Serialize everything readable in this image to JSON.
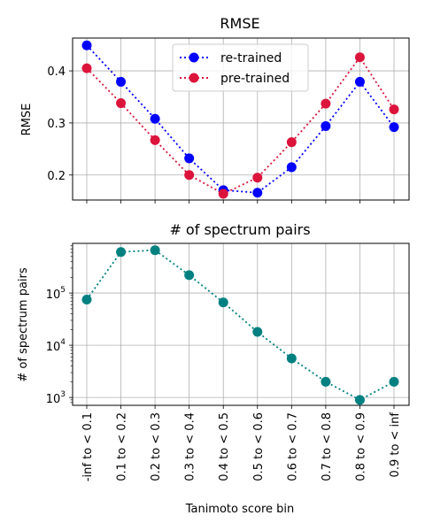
{
  "chart_data": [
    {
      "type": "line",
      "title": "RMSE",
      "ylabel": "RMSE",
      "xlabel": "",
      "ylim": [
        0.152,
        0.463
      ],
      "yticks": [
        0.2,
        0.3,
        0.4
      ],
      "ytick_labels": [
        "0.2",
        "0.3",
        "0.4"
      ],
      "grid": true,
      "legend_position": "upper-center",
      "series": [
        {
          "name": "re-trained",
          "color": "#0000ff",
          "values": [
            0.449,
            0.379,
            0.308,
            0.232,
            0.171,
            0.166,
            0.215,
            0.294,
            0.379,
            0.292
          ]
        },
        {
          "name": "pre-trained",
          "color": "#dc143c",
          "values": [
            0.405,
            0.338,
            0.267,
            0.2,
            0.164,
            0.195,
            0.263,
            0.337,
            0.426,
            0.326
          ]
        }
      ]
    },
    {
      "type": "line",
      "title": "# of spectrum pairs",
      "ylabel": "# of spectrum pairs",
      "xlabel": "Tanimoto score bin",
      "yscale": "log",
      "ylim_log10": [
        2.85,
        5.95
      ],
      "yticks": [
        1000,
        10000,
        100000
      ],
      "ytick_labels": [
        {
          "base": "10",
          "exp": "3"
        },
        {
          "base": "10",
          "exp": "4"
        },
        {
          "base": "10",
          "exp": "5"
        }
      ],
      "grid": true,
      "categories": [
        "-inf to < 0.1",
        "0.1 to < 0.2",
        "0.2 to < 0.3",
        "0.3 to < 0.4",
        "0.4 to < 0.5",
        "0.5 to < 0.6",
        "0.6 to < 0.7",
        "0.7 to < 0.8",
        "0.8 to < 0.9",
        "0.9 to < inf"
      ],
      "series": [
        {
          "color": "#008080",
          "values": [
            75000,
            610000,
            660000,
            220000,
            66000,
            18000,
            5600,
            2000,
            900,
            2000
          ]
        }
      ]
    }
  ]
}
